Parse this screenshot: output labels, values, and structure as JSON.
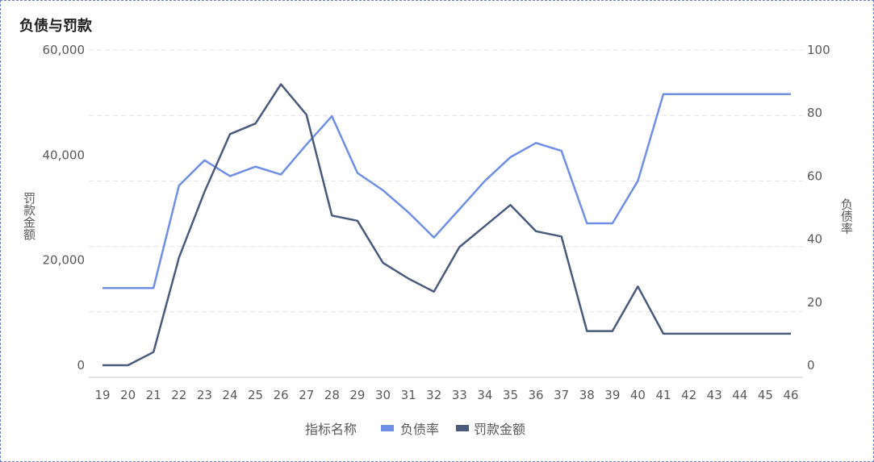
{
  "chart_data": {
    "type": "line",
    "title": "负债与罚款",
    "x": [
      19,
      20,
      21,
      22,
      23,
      24,
      25,
      26,
      27,
      28,
      29,
      30,
      31,
      32,
      33,
      34,
      35,
      36,
      37,
      38,
      39,
      40,
      41,
      42,
      43,
      44,
      45,
      46
    ],
    "xlabel": "",
    "y_left": {
      "label": "罚款金额",
      "ylim": [
        0,
        60000
      ],
      "ticks": [
        0,
        20000,
        40000,
        60000
      ],
      "tick_labels": [
        "0",
        "20,000",
        "40,000",
        "60,000"
      ]
    },
    "y_right": {
      "label": "负债率",
      "ylim": [
        0,
        100
      ],
      "ticks": [
        0,
        20,
        40,
        60,
        80,
        100
      ],
      "tick_labels": [
        "0",
        "20",
        "40",
        "60",
        "80",
        "100"
      ]
    },
    "series": [
      {
        "name": "负债率",
        "axis": "right",
        "color": "#6f8fe6",
        "values": [
          24.5,
          24.5,
          24.5,
          57,
          65,
          60,
          63,
          60.5,
          70,
          79,
          61,
          55.5,
          48.5,
          40.5,
          49.5,
          58.5,
          66,
          70.5,
          68,
          45,
          45,
          58.5,
          86,
          86,
          86,
          86,
          86,
          86
        ]
      },
      {
        "name": "罚款金额",
        "axis": "left",
        "color": "#4a5a7c",
        "values": [
          0,
          0,
          2500,
          20500,
          33000,
          44000,
          46000,
          53500,
          47700,
          28500,
          27500,
          19500,
          16500,
          14000,
          22500,
          26500,
          30500,
          25500,
          24500,
          6500,
          6500,
          15000,
          6000,
          6000,
          6000,
          6000,
          6000,
          6000
        ]
      }
    ],
    "grid": true,
    "legend": {
      "title": "指标名称",
      "position": "bottom-center"
    }
  }
}
